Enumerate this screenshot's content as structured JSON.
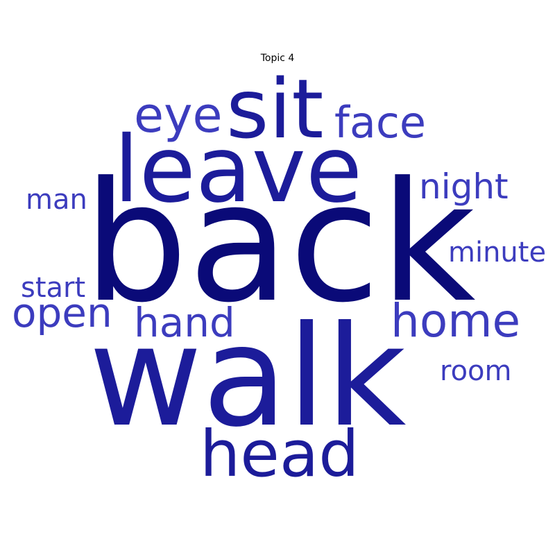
{
  "chart_data": {
    "type": "wordcloud",
    "title": "Topic 4",
    "colors": {
      "dark": "#0a0a78",
      "medium": "#1c1c9a",
      "light": "#3c3cbe"
    },
    "words": [
      {
        "text": "back",
        "tone": "dark"
      },
      {
        "text": "walk",
        "tone": "medium"
      },
      {
        "text": "leave",
        "tone": "medium"
      },
      {
        "text": "sit",
        "tone": "medium"
      },
      {
        "text": "head",
        "tone": "medium"
      },
      {
        "text": "eye",
        "tone": "light"
      },
      {
        "text": "face",
        "tone": "light"
      },
      {
        "text": "home",
        "tone": "light"
      },
      {
        "text": "hand",
        "tone": "light"
      },
      {
        "text": "open",
        "tone": "light"
      },
      {
        "text": "night",
        "tone": "light"
      },
      {
        "text": "minute",
        "tone": "light"
      },
      {
        "text": "room",
        "tone": "light"
      },
      {
        "text": "man",
        "tone": "light"
      },
      {
        "text": "start",
        "tone": "light"
      }
    ]
  }
}
